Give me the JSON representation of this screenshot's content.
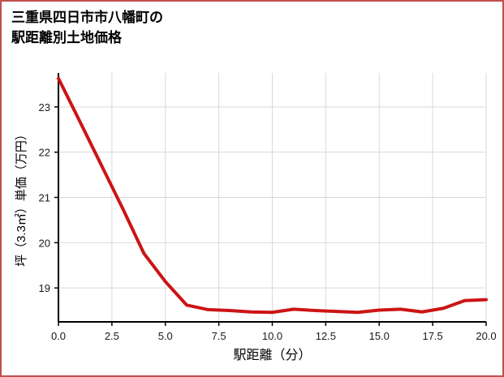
{
  "header": {
    "title_line1": "三重県四日市市八幡町の",
    "title_line2": "駅距離別土地価格"
  },
  "colors": {
    "border": "#c0504d",
    "line": "#cc1414",
    "grid": "#d9d9d9",
    "axis": "#000000",
    "text": "#1a1a1a",
    "background": "#ffffff"
  },
  "chart_data": {
    "type": "line",
    "title": "三重県四日市市八幡町の駅距離別土地価格",
    "xlabel": "駅距離（分）",
    "ylabel": "坪（3.3㎡）単価（万円）",
    "x": [
      0,
      1,
      2,
      3,
      4,
      5,
      6,
      7,
      8,
      9,
      10,
      11,
      12,
      13,
      14,
      15,
      16,
      17,
      18,
      19,
      20
    ],
    "values": [
      23.63,
      22.68,
      21.72,
      20.76,
      19.76,
      19.14,
      18.62,
      18.52,
      18.5,
      18.47,
      18.46,
      18.53,
      18.5,
      18.48,
      18.46,
      18.51,
      18.53,
      18.47,
      18.55,
      18.72,
      18.74
    ],
    "x_ticks": [
      "0.0",
      "2.5",
      "5.0",
      "7.5",
      "10.0",
      "12.5",
      "15.0",
      "17.5",
      "20.0"
    ],
    "x_tick_values": [
      0,
      2.5,
      5,
      7.5,
      10,
      12.5,
      15,
      17.5,
      20
    ],
    "y_ticks": [
      19,
      20,
      21,
      22,
      23
    ],
    "xlim": [
      0,
      20
    ],
    "ylim": [
      18.25,
      23.75
    ],
    "grid": true,
    "legend": "none"
  }
}
